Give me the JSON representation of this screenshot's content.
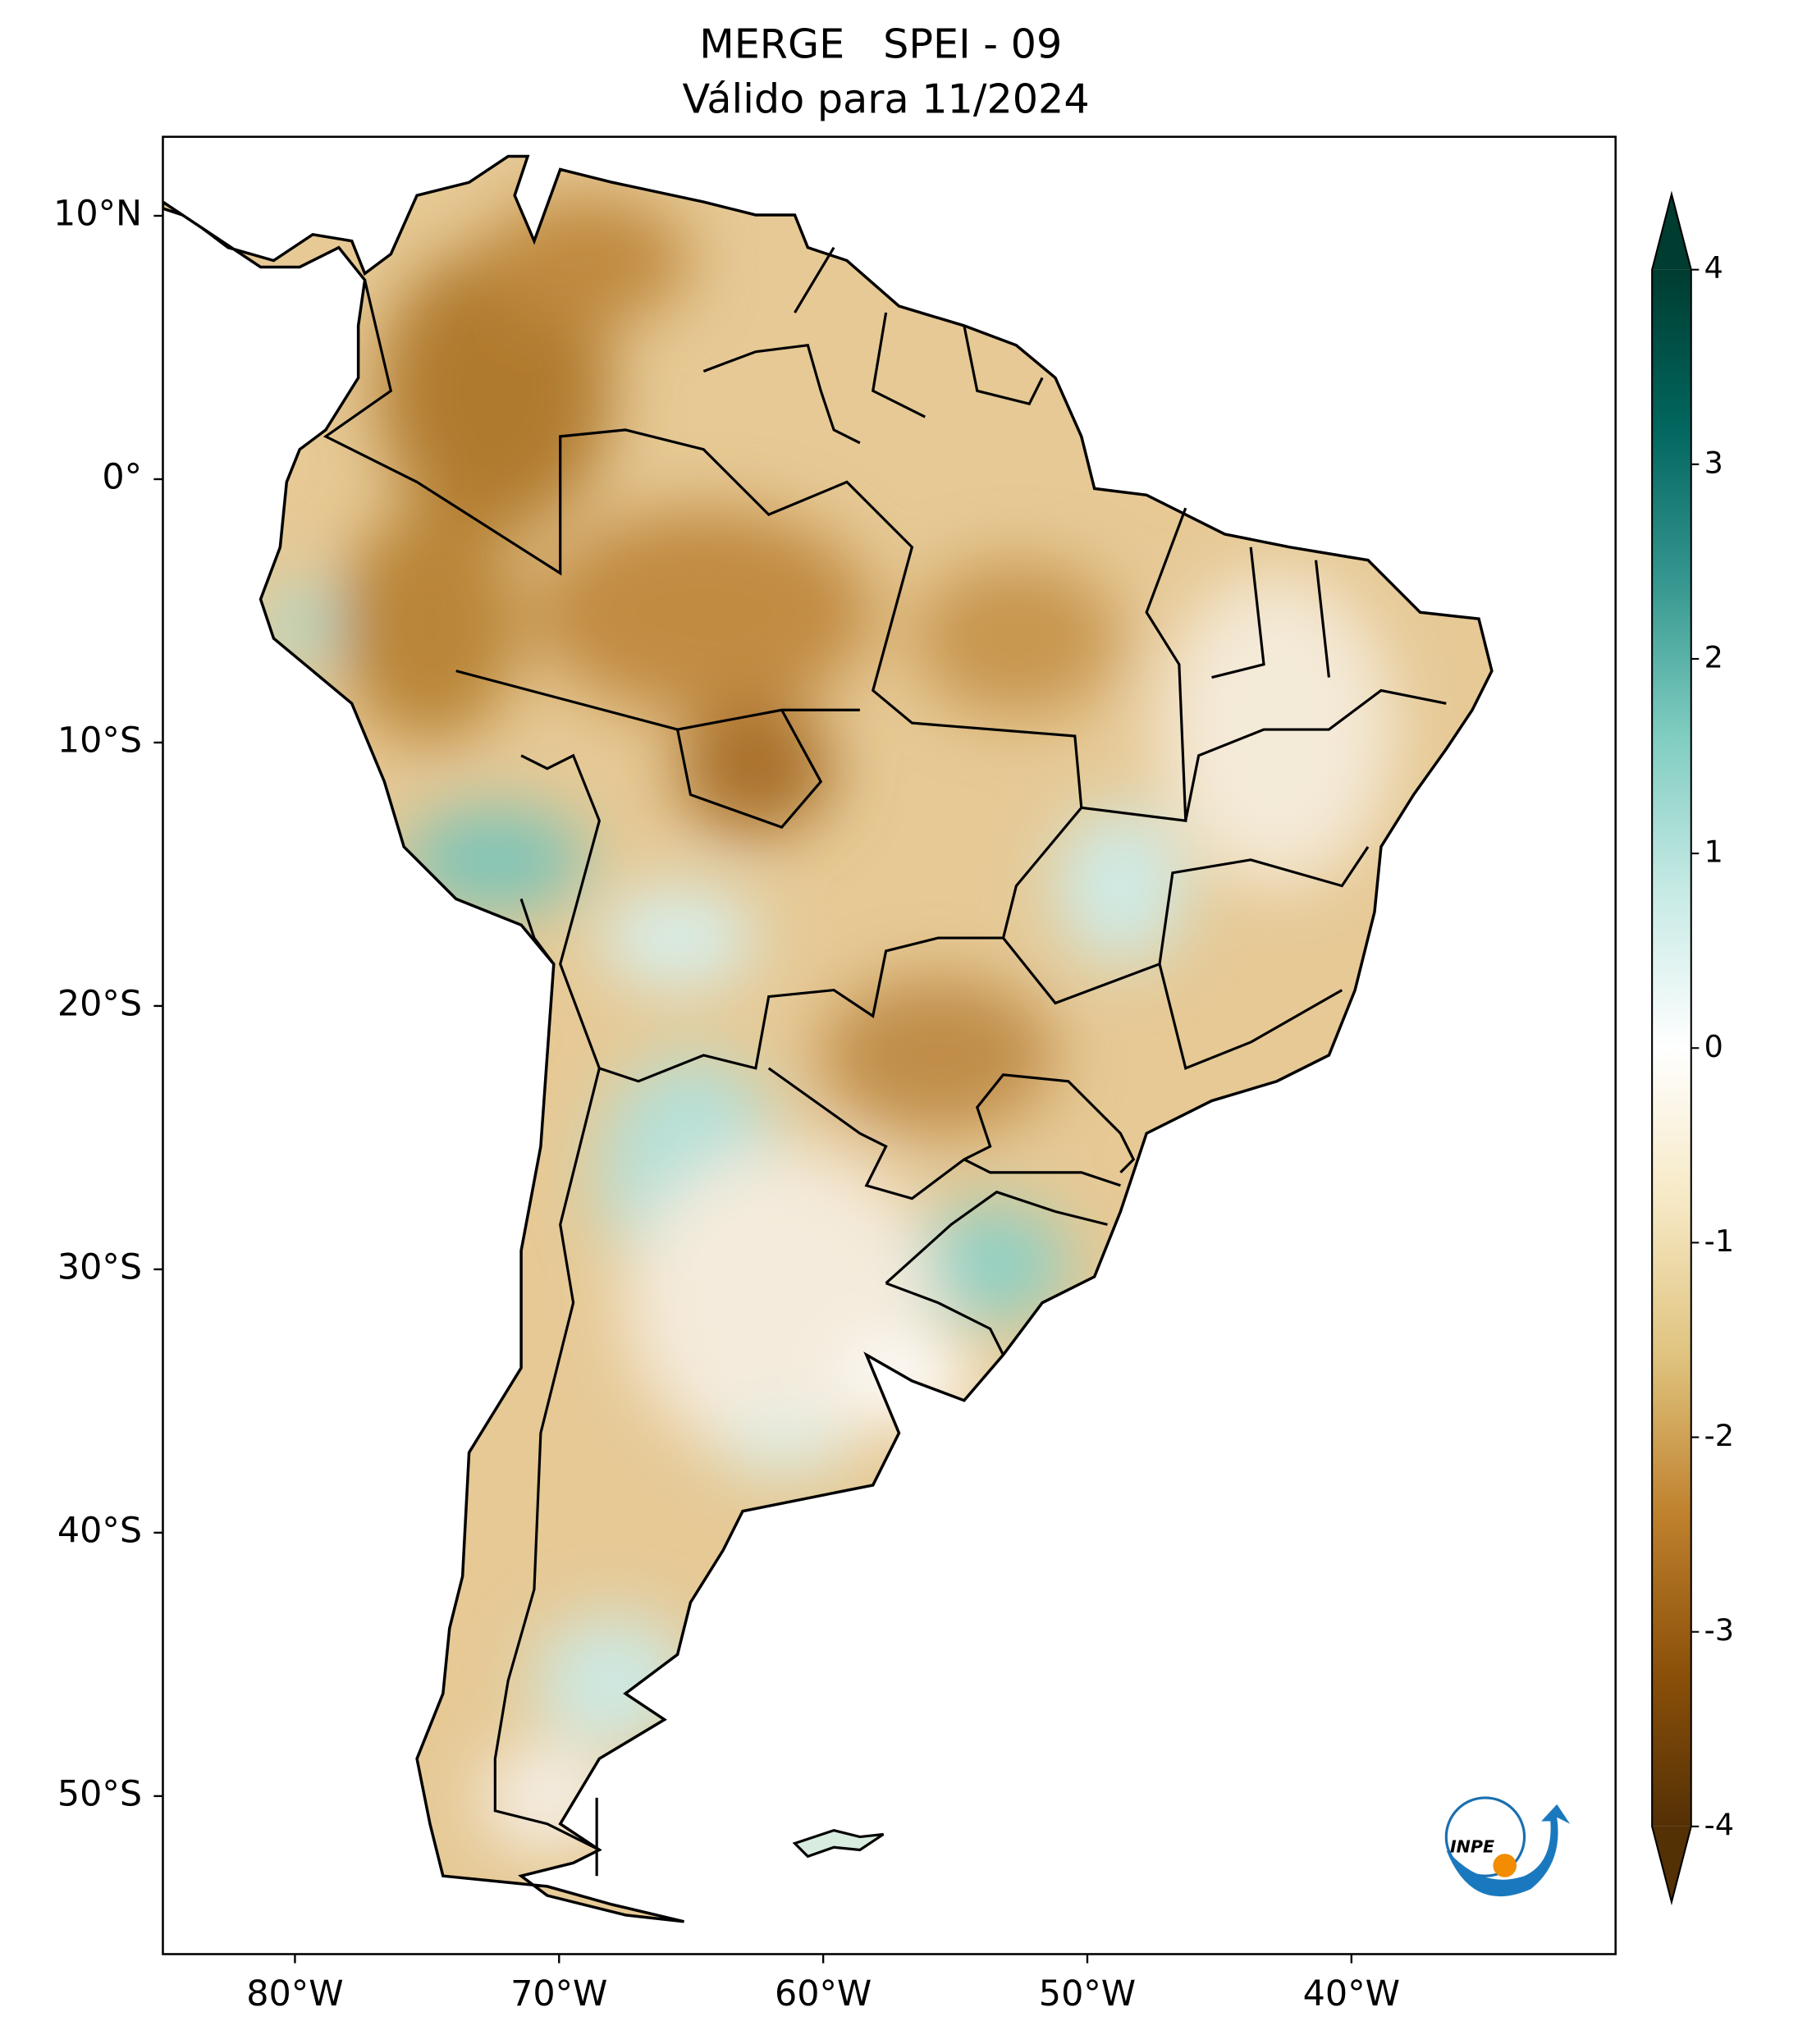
{
  "chart_data": {
    "type": "map",
    "title": [
      "MERGE   SPEI - 09",
      "Válido para 11/2024"
    ],
    "xlim": [
      -85,
      -30
    ],
    "ylim": [
      -56,
      13
    ],
    "xticks": [
      {
        "value": -80,
        "label": "80°W"
      },
      {
        "value": -70,
        "label": "70°W"
      },
      {
        "value": -60,
        "label": "60°W"
      },
      {
        "value": -50,
        "label": "50°W"
      },
      {
        "value": -40,
        "label": "40°W"
      }
    ],
    "yticks": [
      {
        "value": 10,
        "label": "10°N"
      },
      {
        "value": 0,
        "label": "0°"
      },
      {
        "value": -10,
        "label": "10°S"
      },
      {
        "value": -20,
        "label": "20°S"
      },
      {
        "value": -30,
        "label": "30°S"
      },
      {
        "value": -40,
        "label": "40°S"
      },
      {
        "value": -50,
        "label": "50°S"
      }
    ],
    "colorbar": {
      "clim": [
        -4,
        4
      ],
      "ticks": [
        -4,
        -3,
        -2,
        -1,
        0,
        1,
        2,
        3,
        4
      ],
      "extend": "both",
      "colormap": [
        "#543005",
        "#8c510a",
        "#bf812d",
        "#dfc27d",
        "#f6e8c3",
        "#ffffff",
        "#c7eae5",
        "#80cdc1",
        "#35978f",
        "#01665e",
        "#003c30"
      ]
    },
    "logo": "INPE"
  }
}
